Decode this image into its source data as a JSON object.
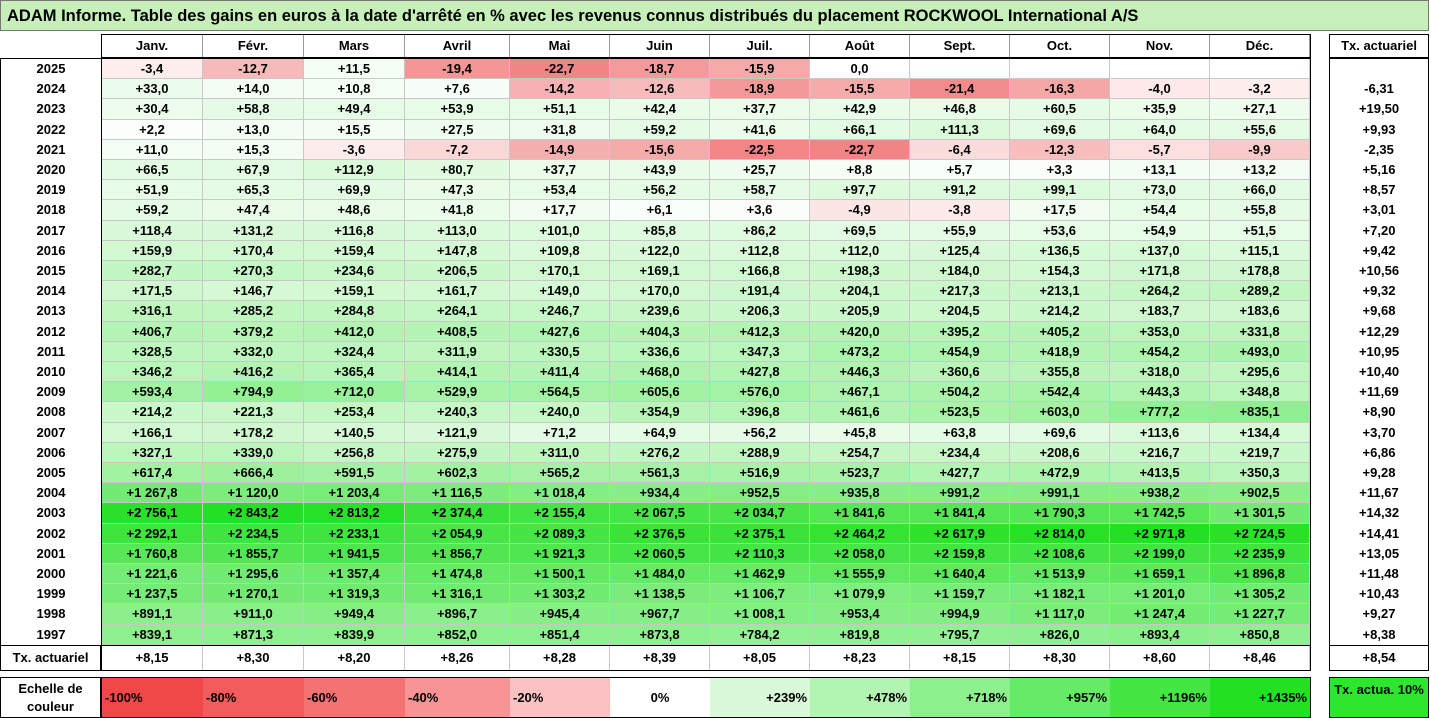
{
  "title": "ADAM Informe. Table des gains en euros à la date d'arrêté en % avec les revenus connus distribués du placement ROCKWOOL International A/S",
  "chart_data": {
    "type": "heatmap",
    "columns": [
      "Janv.",
      "Févr.",
      "Mars",
      "Avril",
      "Mai",
      "Juin",
      "Juil.",
      "Août",
      "Sept.",
      "Oct.",
      "Nov.",
      "Déc."
    ],
    "tx_header": "Tx. actuariel",
    "rows": [
      {
        "year": "2025",
        "values": [
          "-3,4",
          "-12,7",
          "+11,5",
          "-19,4",
          "-22,7",
          "-18,7",
          "-15,9",
          "0,0",
          "",
          "",
          "",
          ""
        ],
        "tx": ""
      },
      {
        "year": "2024",
        "values": [
          "+33,0",
          "+14,0",
          "+10,8",
          "+7,6",
          "-14,2",
          "-12,6",
          "-18,9",
          "-15,5",
          "-21,4",
          "-16,3",
          "-4,0",
          "-3,2"
        ],
        "tx": "-6,31"
      },
      {
        "year": "2023",
        "values": [
          "+30,4",
          "+58,8",
          "+49,4",
          "+53,9",
          "+51,1",
          "+42,4",
          "+37,7",
          "+42,9",
          "+46,8",
          "+60,5",
          "+35,9",
          "+27,1"
        ],
        "tx": "+19,50"
      },
      {
        "year": "2022",
        "values": [
          "+2,2",
          "+13,0",
          "+15,5",
          "+27,5",
          "+31,8",
          "+59,2",
          "+41,6",
          "+66,1",
          "+111,3",
          "+69,6",
          "+64,0",
          "+55,6"
        ],
        "tx": "+9,93"
      },
      {
        "year": "2021",
        "values": [
          "+11,0",
          "+15,3",
          "-3,6",
          "-7,2",
          "-14,9",
          "-15,6",
          "-22,5",
          "-22,7",
          "-6,4",
          "-12,3",
          "-5,7",
          "-9,9"
        ],
        "tx": "-2,35"
      },
      {
        "year": "2020",
        "values": [
          "+66,5",
          "+67,9",
          "+112,9",
          "+80,7",
          "+37,7",
          "+43,9",
          "+25,7",
          "+8,8",
          "+5,7",
          "+3,3",
          "+13,1",
          "+13,2"
        ],
        "tx": "+5,16"
      },
      {
        "year": "2019",
        "values": [
          "+51,9",
          "+65,3",
          "+69,9",
          "+47,3",
          "+53,4",
          "+56,2",
          "+58,7",
          "+97,7",
          "+91,2",
          "+99,1",
          "+73,0",
          "+66,0"
        ],
        "tx": "+8,57"
      },
      {
        "year": "2018",
        "values": [
          "+59,2",
          "+47,4",
          "+48,6",
          "+41,8",
          "+17,7",
          "+6,1",
          "+3,6",
          "-4,9",
          "-3,8",
          "+17,5",
          "+54,4",
          "+55,8"
        ],
        "tx": "+3,01"
      },
      {
        "year": "2017",
        "values": [
          "+118,4",
          "+131,2",
          "+116,8",
          "+113,0",
          "+101,0",
          "+85,8",
          "+86,2",
          "+69,5",
          "+55,9",
          "+53,6",
          "+54,9",
          "+51,5"
        ],
        "tx": "+7,20"
      },
      {
        "year": "2016",
        "values": [
          "+159,9",
          "+170,4",
          "+159,4",
          "+147,8",
          "+109,8",
          "+122,0",
          "+112,8",
          "+112,0",
          "+125,4",
          "+136,5",
          "+137,0",
          "+115,1"
        ],
        "tx": "+9,42"
      },
      {
        "year": "2015",
        "values": [
          "+282,7",
          "+270,3",
          "+234,6",
          "+206,5",
          "+170,1",
          "+169,1",
          "+166,8",
          "+198,3",
          "+184,0",
          "+154,3",
          "+171,8",
          "+178,8"
        ],
        "tx": "+10,56"
      },
      {
        "year": "2014",
        "values": [
          "+171,5",
          "+146,7",
          "+159,1",
          "+161,7",
          "+149,0",
          "+170,0",
          "+191,4",
          "+204,1",
          "+217,3",
          "+213,1",
          "+264,2",
          "+289,2"
        ],
        "tx": "+9,32"
      },
      {
        "year": "2013",
        "values": [
          "+316,1",
          "+285,2",
          "+284,8",
          "+264,1",
          "+246,7",
          "+239,6",
          "+206,3",
          "+205,9",
          "+204,5",
          "+214,2",
          "+183,7",
          "+183,6"
        ],
        "tx": "+9,68"
      },
      {
        "year": "2012",
        "values": [
          "+406,7",
          "+379,2",
          "+412,0",
          "+408,5",
          "+427,6",
          "+404,3",
          "+412,3",
          "+420,0",
          "+395,2",
          "+405,2",
          "+353,0",
          "+331,8"
        ],
        "tx": "+12,29"
      },
      {
        "year": "2011",
        "values": [
          "+328,5",
          "+332,0",
          "+324,4",
          "+311,9",
          "+330,5",
          "+336,6",
          "+347,3",
          "+473,2",
          "+454,9",
          "+418,9",
          "+454,2",
          "+493,0"
        ],
        "tx": "+10,95"
      },
      {
        "year": "2010",
        "values": [
          "+346,2",
          "+416,2",
          "+365,4",
          "+414,1",
          "+411,4",
          "+468,0",
          "+427,8",
          "+446,3",
          "+360,6",
          "+355,8",
          "+318,0",
          "+295,6"
        ],
        "tx": "+10,40"
      },
      {
        "year": "2009",
        "values": [
          "+593,4",
          "+794,9",
          "+712,0",
          "+529,9",
          "+564,5",
          "+605,6",
          "+576,0",
          "+467,1",
          "+504,2",
          "+542,4",
          "+443,3",
          "+348,8"
        ],
        "tx": "+11,69"
      },
      {
        "year": "2008",
        "values": [
          "+214,2",
          "+221,3",
          "+253,4",
          "+240,3",
          "+240,0",
          "+354,9",
          "+396,8",
          "+461,6",
          "+523,5",
          "+603,0",
          "+777,2",
          "+835,1"
        ],
        "tx": "+8,90"
      },
      {
        "year": "2007",
        "values": [
          "+166,1",
          "+178,2",
          "+140,5",
          "+121,9",
          "+71,2",
          "+64,9",
          "+56,2",
          "+45,8",
          "+63,8",
          "+69,6",
          "+113,6",
          "+134,4"
        ],
        "tx": "+3,70"
      },
      {
        "year": "2006",
        "values": [
          "+327,1",
          "+339,0",
          "+256,8",
          "+275,9",
          "+311,0",
          "+276,2",
          "+288,9",
          "+254,7",
          "+234,4",
          "+208,6",
          "+216,7",
          "+219,7"
        ],
        "tx": "+6,86"
      },
      {
        "year": "2005",
        "values": [
          "+617,4",
          "+666,4",
          "+591,5",
          "+602,3",
          "+565,2",
          "+561,3",
          "+516,9",
          "+523,7",
          "+427,7",
          "+472,9",
          "+413,5",
          "+350,3"
        ],
        "tx": "+9,28"
      },
      {
        "year": "2004",
        "values": [
          "+1 267,8",
          "+1 120,0",
          "+1 203,4",
          "+1 116,5",
          "+1 018,4",
          "+934,4",
          "+952,5",
          "+935,8",
          "+991,2",
          "+991,1",
          "+938,2",
          "+902,5"
        ],
        "tx": "+11,67"
      },
      {
        "year": "2003",
        "values": [
          "+2 756,1",
          "+2 843,2",
          "+2 813,2",
          "+2 374,4",
          "+2 155,4",
          "+2 067,5",
          "+2 034,7",
          "+1 841,6",
          "+1 841,4",
          "+1 790,3",
          "+1 742,5",
          "+1 301,5"
        ],
        "tx": "+14,32"
      },
      {
        "year": "2002",
        "values": [
          "+2 292,1",
          "+2 234,5",
          "+2 233,1",
          "+2 054,9",
          "+2 089,3",
          "+2 376,5",
          "+2 375,1",
          "+2 464,2",
          "+2 617,9",
          "+2 814,0",
          "+2 971,8",
          "+2 724,5"
        ],
        "tx": "+14,41"
      },
      {
        "year": "2001",
        "values": [
          "+1 760,8",
          "+1 855,7",
          "+1 941,5",
          "+1 856,7",
          "+1 921,3",
          "+2 060,5",
          "+2 110,3",
          "+2 058,0",
          "+2 159,8",
          "+2 108,6",
          "+2 199,0",
          "+2 235,9"
        ],
        "tx": "+13,05"
      },
      {
        "year": "2000",
        "values": [
          "+1 221,6",
          "+1 295,6",
          "+1 357,4",
          "+1 474,8",
          "+1 500,1",
          "+1 484,0",
          "+1 462,9",
          "+1 555,9",
          "+1 640,4",
          "+1 513,9",
          "+1 659,1",
          "+1 896,8"
        ],
        "tx": "+11,48"
      },
      {
        "year": "1999",
        "values": [
          "+1 237,5",
          "+1 270,1",
          "+1 319,3",
          "+1 316,1",
          "+1 303,2",
          "+1 138,5",
          "+1 106,7",
          "+1 079,9",
          "+1 159,7",
          "+1 182,1",
          "+1 201,0",
          "+1 305,2"
        ],
        "tx": "+10,43"
      },
      {
        "year": "1998",
        "values": [
          "+891,1",
          "+911,0",
          "+949,4",
          "+896,7",
          "+945,4",
          "+967,7",
          "+1 008,1",
          "+953,4",
          "+994,9",
          "+1 117,0",
          "+1 247,4",
          "+1 227,7"
        ],
        "tx": "+9,27"
      },
      {
        "year": "1997",
        "values": [
          "+839,1",
          "+871,3",
          "+839,9",
          "+852,0",
          "+851,4",
          "+873,8",
          "+784,2",
          "+819,8",
          "+795,7",
          "+826,0",
          "+893,4",
          "+850,8"
        ],
        "tx": "+8,38"
      }
    ],
    "total_label": "Tx. actuariel",
    "totals": [
      "+8,15",
      "+8,30",
      "+8,20",
      "+8,26",
      "+8,28",
      "+8,39",
      "+8,05",
      "+8,23",
      "+8,15",
      "+8,30",
      "+8,60",
      "+8,46"
    ],
    "total_tx": "+8,54",
    "scale_label": "Echelle de couleur",
    "scale": [
      {
        "label": "-100%",
        "color": "#f04848"
      },
      {
        "label": "-80%",
        "color": "#f25c5c"
      },
      {
        "label": "-60%",
        "color": "#f47272"
      },
      {
        "label": "-40%",
        "color": "#f79494"
      },
      {
        "label": "-20%",
        "color": "#fac2c2"
      },
      {
        "label": "0%",
        "color": "#ffffff"
      },
      {
        "label": "+239%",
        "color": "#d8fad8"
      },
      {
        "label": "+478%",
        "color": "#b2f5b2"
      },
      {
        "label": "+718%",
        "color": "#8cf08c"
      },
      {
        "label": "+957%",
        "color": "#66eb66"
      },
      {
        "label": "+1196%",
        "color": "#44e644"
      },
      {
        "label": "+1435%",
        "color": "#22e022"
      }
    ],
    "legend_tx_label": "Tx. actua. 10%"
  }
}
